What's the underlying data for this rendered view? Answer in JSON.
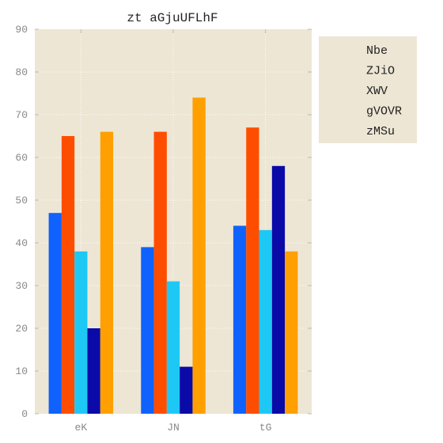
{
  "chart_data": {
    "type": "bar",
    "title": "zt aGjuUFLhF",
    "xlabel": "",
    "ylabel": "",
    "categories": [
      "eK",
      "JN",
      "tG"
    ],
    "ylim": [
      0,
      90
    ],
    "yticks": [
      0,
      10,
      20,
      30,
      40,
      50,
      60,
      70,
      80,
      90
    ],
    "grid": true,
    "legend_position": "right",
    "series": [
      {
        "name": "Nbe",
        "color": "#0f62fe",
        "values": [
          47,
          39,
          44
        ]
      },
      {
        "name": "ZJiO",
        "color": "#ff4d00",
        "values": [
          65,
          66,
          67
        ]
      },
      {
        "name": "XWV",
        "color": "#1ec8f5",
        "values": [
          38,
          31,
          43
        ]
      },
      {
        "name": "gVOVR",
        "color": "#0a0aa8",
        "values": [
          20,
          11,
          58
        ]
      },
      {
        "name": "zMSu",
        "color": "#ff9f00",
        "values": [
          66,
          74,
          38
        ]
      }
    ],
    "colors": {
      "plot_background": "#ede6d4",
      "grid": "#ffffff",
      "legend_background": "#ede6d4"
    }
  }
}
